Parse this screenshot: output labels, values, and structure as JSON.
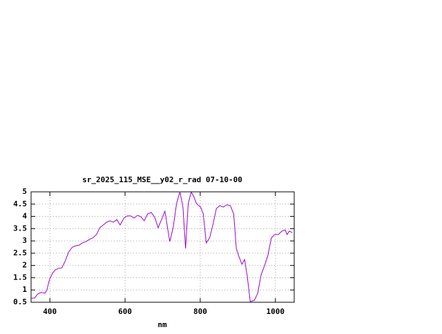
{
  "chart_data": {
    "type": "line",
    "title": "sr_2025_115_MSE__y02_r_rad 07-10-00",
    "xlabel": "nm",
    "x": [
      350,
      359,
      368,
      377,
      387,
      392,
      399,
      407,
      414,
      423,
      432,
      441,
      450,
      460,
      469,
      478,
      487,
      496,
      505,
      514,
      524,
      533,
      542,
      551,
      560,
      569,
      578,
      587,
      597,
      606,
      615,
      624,
      633,
      642,
      651,
      660,
      670,
      679,
      688,
      697,
      706,
      719,
      728,
      737,
      746,
      754,
      761,
      768,
      776,
      783,
      790,
      801,
      808,
      816,
      825,
      834,
      843,
      852,
      861,
      871,
      880,
      889,
      896,
      903,
      911,
      918,
      925,
      933,
      944,
      953,
      962,
      971,
      980,
      989,
      998,
      1008,
      1017,
      1026,
      1031,
      1037,
      1045
    ],
    "series": [
      {
        "color": "#9400d3",
        "values": [
          0.67,
          0.67,
          0.84,
          0.9,
          0.87,
          1.0,
          1.43,
          1.68,
          1.82,
          1.88,
          1.9,
          2.19,
          2.55,
          2.75,
          2.8,
          2.83,
          2.92,
          2.97,
          3.06,
          3.12,
          3.26,
          3.54,
          3.65,
          3.76,
          3.82,
          3.76,
          3.87,
          3.65,
          3.93,
          4.02,
          4.02,
          3.93,
          4.04,
          3.99,
          3.82,
          4.1,
          4.16,
          3.96,
          3.54,
          3.87,
          4.21,
          2.97,
          3.54,
          4.52,
          5.0,
          4.38,
          2.69,
          4.52,
          5.0,
          4.8,
          4.52,
          4.38,
          4.1,
          2.92,
          3.12,
          3.68,
          4.32,
          4.44,
          4.38,
          4.47,
          4.44,
          4.1,
          2.69,
          2.36,
          2.05,
          2.24,
          1.57,
          0.53,
          0.58,
          0.87,
          1.62,
          1.99,
          2.41,
          3.12,
          3.26,
          3.26,
          3.4,
          3.45,
          3.26,
          3.4,
          3.34
        ]
      }
    ],
    "xlim": [
      350,
      1050
    ],
    "xticks": [
      400,
      600,
      800,
      1000
    ],
    "ylim": [
      0.5,
      5
    ],
    "yticks": [
      0.5,
      1,
      1.5,
      2,
      2.5,
      3,
      3.5,
      4,
      4.5,
      5
    ],
    "grid": true
  }
}
